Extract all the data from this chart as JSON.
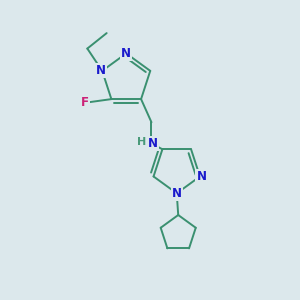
{
  "background_color": "#dce8ec",
  "bond_color": "#3a9070",
  "bond_width": 1.4,
  "atom_colors": {
    "N": "#1a1acc",
    "F": "#cc2277",
    "H": "#4a9a7a",
    "C": "#3a9070"
  }
}
